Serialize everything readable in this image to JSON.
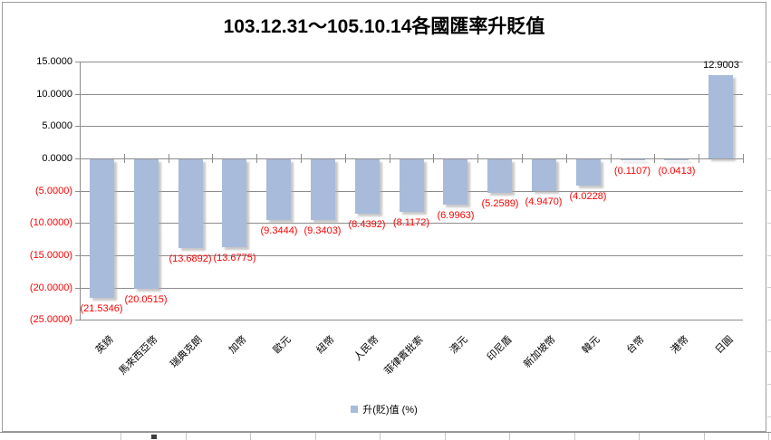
{
  "chart_data": {
    "type": "bar",
    "title": "103.12.31～105.10.14各國匯率升貶值",
    "legend": "升(貶)值 (%)",
    "legend_position": "bottom",
    "grid": true,
    "categories": [
      "英鎊",
      "馬來西亞幣",
      "瑞典克朗",
      "加幣",
      "歐元",
      "紐幣",
      "人民幣",
      "菲律賓批索",
      "澳元",
      "印尼盾",
      "新加坡幣",
      "韓元",
      "台幣",
      "港幣",
      "日圓"
    ],
    "values": [
      -21.5346,
      -20.0515,
      -13.6892,
      -13.6775,
      -9.3444,
      -9.3403,
      -8.4392,
      -8.1172,
      -6.9963,
      -5.2589,
      -4.947,
      -4.0228,
      -0.1107,
      -0.0413,
      12.9003
    ],
    "data_labels": [
      "(21.5346)",
      "(20.0515)",
      "(13.6892)",
      "(13.6775)",
      "(9.3444)",
      "(9.3403)",
      "(8.4392)",
      "(8.1172)",
      "(6.9963)",
      "(5.2589)",
      "(4.9470)",
      "(4.0228)",
      "(0.1107)",
      "(0.0413)",
      "12.9003"
    ],
    "xlabel": "",
    "ylabel": "",
    "ylim": [
      -25,
      15
    ],
    "y_tick_values": [
      15,
      10,
      5,
      0,
      -5,
      -10,
      -15,
      -20,
      -25
    ],
    "y_tick_labels": [
      "15.0000",
      "10.0000",
      "5.0000",
      "0.0000",
      "(5.0000)",
      "(10.0000)",
      "(15.0000)",
      "(20.0000)",
      "(25.0000)"
    ],
    "colors": {
      "bar": "#a8bbda",
      "negative_text": "#ff0000",
      "positive_text": "#000000",
      "gridline": "#8c8c8c"
    }
  }
}
